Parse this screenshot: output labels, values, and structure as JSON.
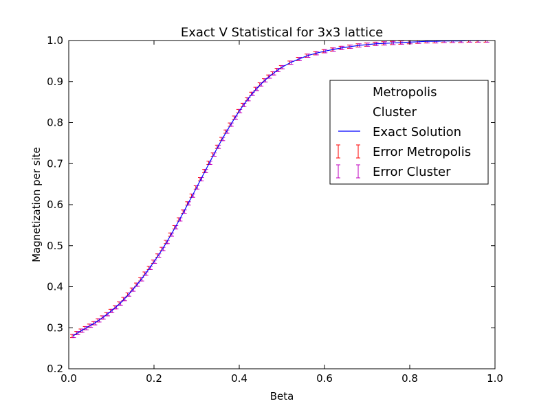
{
  "chart_data": {
    "type": "line",
    "title": "Exact V Statistical for 3x3 lattice",
    "xlabel": "Beta",
    "ylabel": "Magnetization per site",
    "xlim": [
      0.0,
      1.0
    ],
    "ylim": [
      0.2,
      1.0
    ],
    "xticks": [
      "0.0",
      "0.2",
      "0.4",
      "0.6",
      "0.8",
      "1.0"
    ],
    "yticks": [
      "0.2",
      "0.3",
      "0.4",
      "0.5",
      "0.6",
      "0.7",
      "0.8",
      "0.9",
      "1.0"
    ],
    "grid": false,
    "legend_position": "upper-right",
    "beta": [
      0.01,
      0.02,
      0.03,
      0.04,
      0.05,
      0.06,
      0.07,
      0.08,
      0.09,
      0.1,
      0.11,
      0.12,
      0.13,
      0.14,
      0.15,
      0.16,
      0.17,
      0.18,
      0.19,
      0.2,
      0.21,
      0.22,
      0.23,
      0.24,
      0.25,
      0.26,
      0.27,
      0.28,
      0.29,
      0.3,
      0.31,
      0.32,
      0.33,
      0.34,
      0.35,
      0.36,
      0.37,
      0.38,
      0.39,
      0.4,
      0.41,
      0.42,
      0.43,
      0.44,
      0.45,
      0.46,
      0.47,
      0.48,
      0.49,
      0.5,
      0.52,
      0.54,
      0.56,
      0.58,
      0.6,
      0.62,
      0.64,
      0.66,
      0.68,
      0.7,
      0.72,
      0.74,
      0.76,
      0.78,
      0.8,
      0.82,
      0.84,
      0.86,
      0.88,
      0.9,
      0.92,
      0.94,
      0.96,
      0.98
    ],
    "magnetization": [
      0.28,
      0.287,
      0.293,
      0.299,
      0.305,
      0.311,
      0.318,
      0.325,
      0.333,
      0.341,
      0.35,
      0.359,
      0.37,
      0.381,
      0.393,
      0.405,
      0.418,
      0.432,
      0.446,
      0.461,
      0.476,
      0.492,
      0.509,
      0.527,
      0.545,
      0.564,
      0.583,
      0.603,
      0.622,
      0.642,
      0.662,
      0.682,
      0.702,
      0.722,
      0.741,
      0.76,
      0.778,
      0.795,
      0.812,
      0.828,
      0.843,
      0.857,
      0.87,
      0.882,
      0.893,
      0.903,
      0.912,
      0.92,
      0.928,
      0.935,
      0.946,
      0.955,
      0.963,
      0.969,
      0.974,
      0.978,
      0.982,
      0.985,
      0.988,
      0.99,
      0.992,
      0.993,
      0.994,
      0.995,
      0.996,
      0.997,
      0.998,
      0.998,
      0.999,
      0.999,
      0.999,
      1.0,
      1.0,
      1.0
    ],
    "error_halfwidth": 0.004,
    "series": [
      {
        "name": "Metropolis",
        "marker": "none",
        "color": "#ffffff"
      },
      {
        "name": "Cluster",
        "marker": "none",
        "color": "#ffffff"
      },
      {
        "name": "Exact Solution",
        "style": "line",
        "color": "#0000ff"
      },
      {
        "name": "Error Metropolis",
        "style": "errorbar",
        "color": "#ff0000"
      },
      {
        "name": "Error Cluster",
        "style": "errorbar",
        "color": "#bf00bf"
      }
    ]
  }
}
